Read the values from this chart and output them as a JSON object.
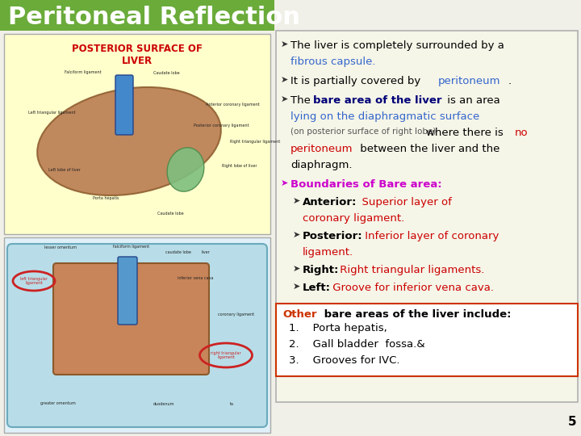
{
  "title": "Peritoneal Reflection",
  "title_bg": "#6aab3a",
  "title_color": "white",
  "title_fontsize": 22,
  "slide_bg": "#f0f0e8",
  "right_panel_bg": "#f5f5e8",
  "right_panel_border": "#b0b0b0",
  "bottom_panel_bg": "#ffffff",
  "bottom_panel_border": "#cc3300",
  "bullet_lines": [
    {
      "parts": [
        {
          "text": "The liver is completely surrounded by a ",
          "color": "#000000",
          "bold": false
        },
        {
          "text": "fibrous capsule.",
          "color": "#3366cc",
          "bold": false
        }
      ]
    },
    {
      "parts": [
        {
          "text": "It is partially covered by  ",
          "color": "#000000",
          "bold": false
        },
        {
          "text": "peritoneum",
          "color": "#3366cc",
          "bold": false
        },
        {
          "text": ".",
          "color": "#000000",
          "bold": false
        }
      ]
    },
    {
      "parts": [
        {
          "text": "The ",
          "color": "#000000",
          "bold": false
        },
        {
          "text": "bare area of the liver",
          "color": "#000077",
          "bold": true
        },
        {
          "text": " is an area",
          "color": "#000000",
          "bold": false
        }
      ]
    },
    {
      "parts": [
        {
          "text": "lying on the diaphragmatic surface",
          "color": "#3366cc",
          "bold": false
        }
      ]
    },
    {
      "parts": [
        {
          "text": "(on posterior surface of right lobe) ",
          "color": "#555555",
          "bold": false,
          "small": true
        },
        {
          "text": "where there is ",
          "color": "#000000",
          "bold": false
        },
        {
          "text": "no",
          "color": "#cc0000",
          "bold": false
        }
      ]
    },
    {
      "parts": [
        {
          "text": "peritoneum",
          "color": "#cc0000",
          "bold": false
        },
        {
          "text": " between the liver and the",
          "color": "#000000",
          "bold": false
        }
      ]
    },
    {
      "parts": [
        {
          "text": "diaphragm.",
          "color": "#000000",
          "bold": false
        }
      ]
    }
  ],
  "boundaries_title": "Boundaries of Bare area:",
  "boundaries_color": "#cc00cc",
  "sub_bullets": [
    {
      "label": "Anterior:",
      "label_color": "#000000",
      "label_bold": true,
      "parts": [
        {
          "text": "  Superior layer of",
          "color": "#cc0000"
        },
        {
          "text": "coronary ligament.",
          "color": "#cc0000",
          "indent": true
        }
      ]
    },
    {
      "label": "Posterior:",
      "label_color": "#000000",
      "label_bold": true,
      "parts": [
        {
          "text": " Inferior layer of coronary",
          "color": "#cc0000"
        },
        {
          "text": "ligament.",
          "color": "#cc0000",
          "indent": true
        }
      ]
    },
    {
      "label": "Right:",
      "label_color": "#000000",
      "label_bold": true,
      "parts": [
        {
          "text": " Right triangular ligaments.",
          "color": "#cc0000"
        }
      ]
    },
    {
      "label": "Left:",
      "label_color": "#000000",
      "label_bold": true,
      "parts": [
        {
          "text": " Groove for inferior vena cava.",
          "color": "#cc0000"
        }
      ]
    }
  ],
  "other_title_orange": "Other",
  "other_title_rest": " bare areas of the liver include:",
  "other_list": [
    "Porta hepatis,",
    "Gall bladder  fossa.&",
    "Grooves for IVC."
  ],
  "page_number": "5",
  "left_panel_top_bg": "#ffffcc",
  "left_panel_top_title": "POSTERIOR SURFACE OF\nLIVER",
  "left_panel_top_title_color": "#cc0000"
}
